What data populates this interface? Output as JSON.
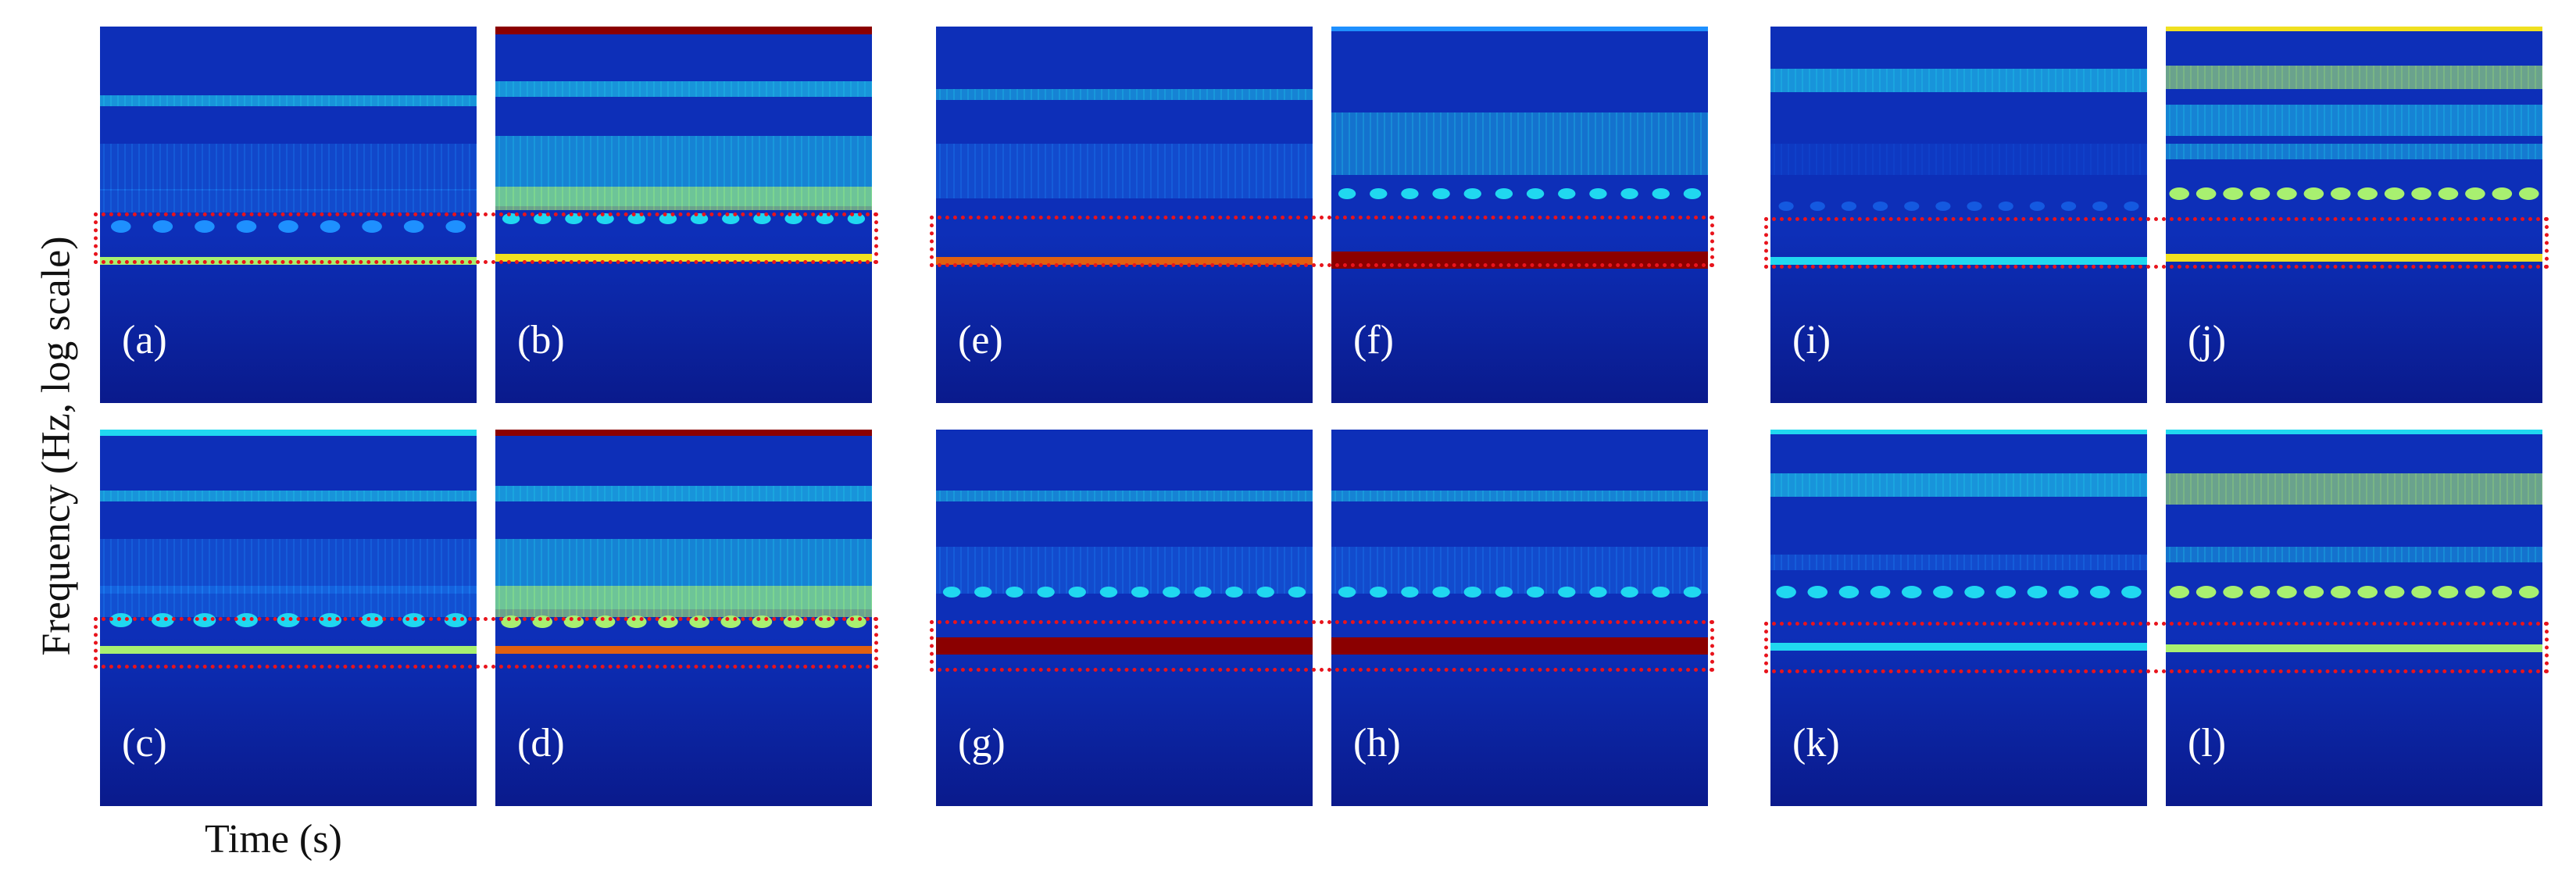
{
  "figure": {
    "ylabel": "Frequency (Hz, log scale)",
    "xlabel": "Time (s)"
  },
  "colormap": [
    "#0a1a8c",
    "#0d2fb8",
    "#1459e0",
    "#1e90ff",
    "#20d8f0",
    "#a8f070",
    "#f0e020",
    "#e06010",
    "#8b0000"
  ],
  "groups": [
    {
      "panels": [
        {
          "label": "(a)",
          "profile": "A",
          "hl": 0.3
        },
        {
          "label": "(b)",
          "profile": "B",
          "hl": 0.55
        },
        {
          "label": "(c)",
          "profile": "A2",
          "hl": 0.45
        },
        {
          "label": "(d)",
          "profile": "B2",
          "hl": 0.7
        }
      ]
    },
    {
      "panels": [
        {
          "label": "(e)",
          "profile": "E",
          "hl": 0.72
        },
        {
          "label": "(f)",
          "profile": "F",
          "hl": 1.0
        },
        {
          "label": "(g)",
          "profile": "G",
          "hl": 1.0
        },
        {
          "label": "(h)",
          "profile": "H",
          "hl": 1.0
        }
      ]
    },
    {
      "panels": [
        {
          "label": "(i)",
          "profile": "I",
          "hl": 0.15
        },
        {
          "label": "(j)",
          "profile": "J",
          "hl": 0.5
        },
        {
          "label": "(k)",
          "profile": "K",
          "hl": 0.2
        },
        {
          "label": "(l)",
          "profile": "L",
          "hl": 0.45
        }
      ]
    }
  ]
}
